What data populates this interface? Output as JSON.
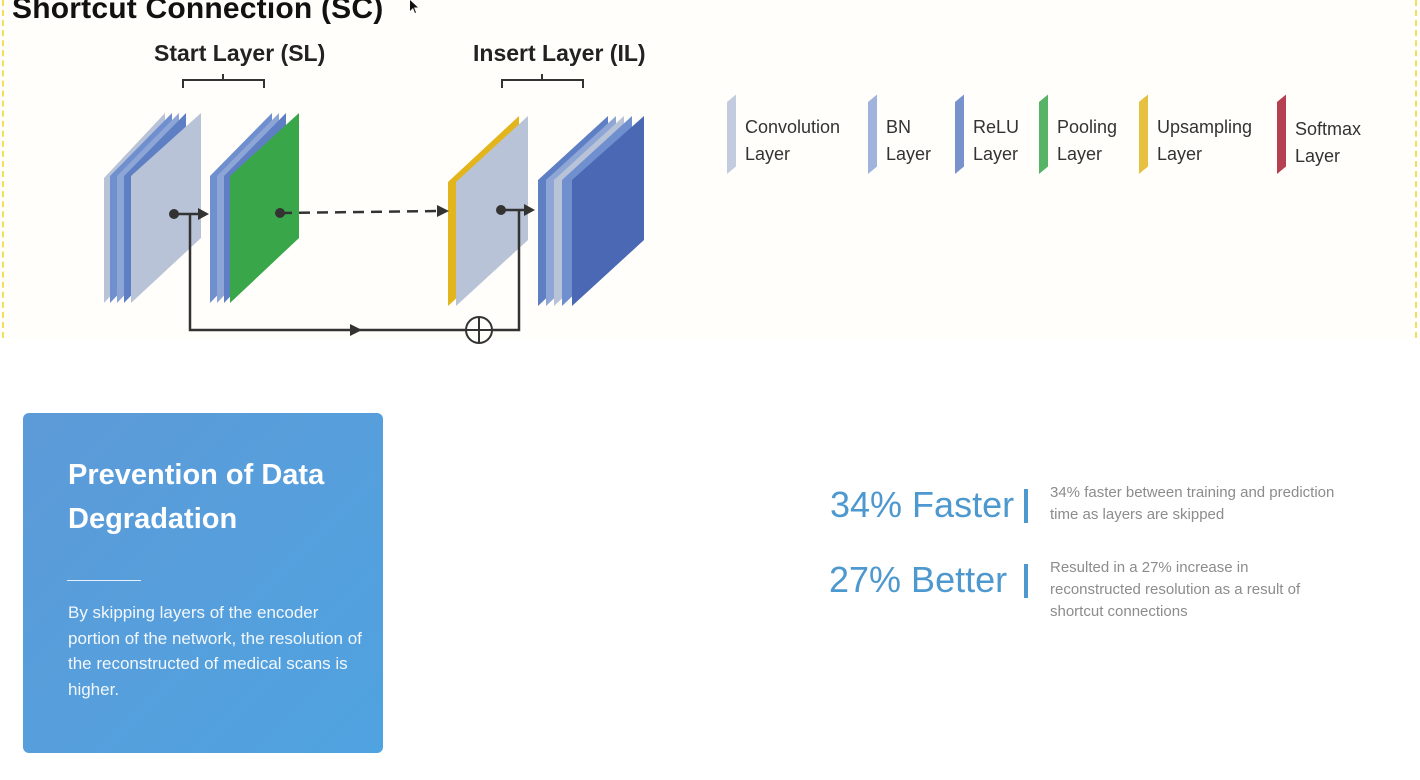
{
  "diagram": {
    "title": "Shortcut Connection (SC)",
    "start_layer_label": "Start Layer (SL)",
    "insert_layer_label": "Insert Layer (IL)"
  },
  "legend": [
    {
      "line1": "Convolution",
      "line2": "Layer",
      "color": "#b9c3d8",
      "icon": "convolution-layer-swatch"
    },
    {
      "line1": "BN",
      "line2": "Layer",
      "color": "#8ea6d6",
      "icon": "bn-layer-swatch"
    },
    {
      "line1": "ReLU",
      "line2": "Layer",
      "color": "#5f7fc4",
      "icon": "relu-layer-swatch"
    },
    {
      "line1": "Pooling",
      "line2": "Layer",
      "color": "#3aa64a",
      "icon": "pooling-layer-swatch"
    },
    {
      "line1": "Upsampling",
      "line2": "Layer",
      "color": "#e2b51d",
      "icon": "upsampling-layer-swatch"
    },
    {
      "line1": "Softmax",
      "line2": "Layer",
      "color": "#a81f33",
      "icon": "softmax-layer-swatch"
    }
  ],
  "card": {
    "title": "Prevention of Data Degradation",
    "body": "By skipping layers of the encoder portion of the network, the resolution of the  reconstructed of medical scans is higher."
  },
  "stats": [
    {
      "headline": "34% Faster",
      "description": "34% faster between training and prediction time as layers are skipped"
    },
    {
      "headline": "27% Better",
      "description": "Resulted in a 27% increase in reconstructed resolution as a result of shortcut connections"
    }
  ],
  "colors": {
    "card_gradient_start": "#5d9ad8",
    "card_gradient_end": "#4fa3e0",
    "stat_accent": "#4d98cf",
    "frame_dash": "#f1df5a"
  }
}
